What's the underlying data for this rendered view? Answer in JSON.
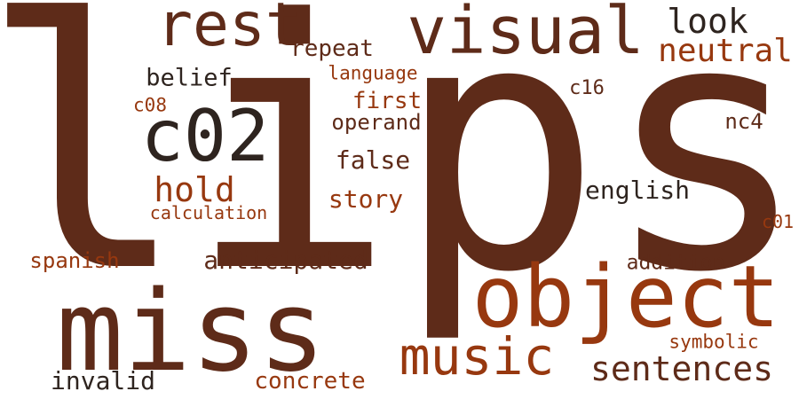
{
  "palette": {
    "dark": "#5e2b19",
    "rust": "#97380f",
    "ink": "#2e241f"
  },
  "words": [
    {
      "text": "lips",
      "color": "#5e2b19"
    },
    {
      "text": "miss",
      "color": "#5e2b19"
    },
    {
      "text": "object",
      "color": "#97380f"
    },
    {
      "text": "visual",
      "color": "#5e2b19"
    },
    {
      "text": "rest",
      "color": "#5e2b19"
    },
    {
      "text": "c02",
      "color": "#2e241f"
    },
    {
      "text": "music",
      "color": "#97380f"
    },
    {
      "text": "sentences",
      "color": "#5e2b19"
    },
    {
      "text": "look",
      "color": "#2e241f"
    },
    {
      "text": "neutral",
      "color": "#97380f"
    },
    {
      "text": "hold",
      "color": "#97380f"
    },
    {
      "text": "repeat",
      "color": "#5e2b19"
    },
    {
      "text": "belief",
      "color": "#2e241f"
    },
    {
      "text": "language",
      "color": "#97380f"
    },
    {
      "text": "first",
      "color": "#97380f"
    },
    {
      "text": "c08",
      "color": "#97380f"
    },
    {
      "text": "operand",
      "color": "#5e2b19"
    },
    {
      "text": "c16",
      "color": "#5e2b19"
    },
    {
      "text": "nc4",
      "color": "#5e2b19"
    },
    {
      "text": "false",
      "color": "#5e2b19"
    },
    {
      "text": "story",
      "color": "#97380f"
    },
    {
      "text": "english",
      "color": "#2e241f"
    },
    {
      "text": "calculation",
      "color": "#97380f"
    },
    {
      "text": "c01",
      "color": "#97380f"
    },
    {
      "text": "spanish",
      "color": "#97380f"
    },
    {
      "text": "anticipated",
      "color": "#5e2b19"
    },
    {
      "text": "addition",
      "color": "#5e2b19"
    },
    {
      "text": "symbolic",
      "color": "#97380f"
    },
    {
      "text": "invalid",
      "color": "#2e241f"
    },
    {
      "text": "concrete",
      "color": "#97380f"
    }
  ]
}
